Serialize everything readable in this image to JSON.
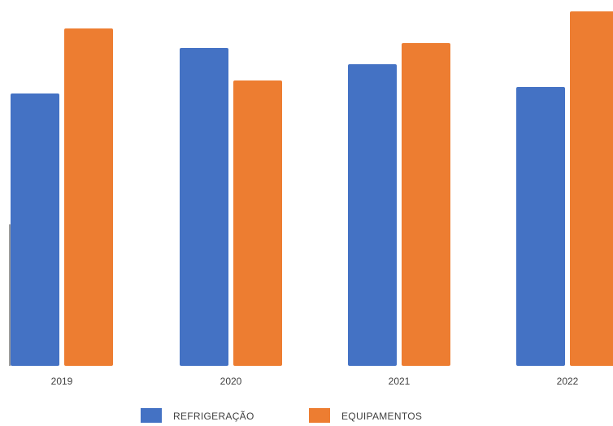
{
  "chart_data": {
    "type": "bar",
    "categories": [
      "2019",
      "2020",
      "2021",
      "2022"
    ],
    "series": [
      {
        "name": "REFRIGERAÇÃO",
        "color": "#4472C4",
        "values": [
          33.5,
          39.1,
          37.1,
          34.3
        ]
      },
      {
        "name": "EQUIPAMENTOS",
        "color": "#ED7D31",
        "values": [
          41.5,
          35.1,
          39.7,
          43.6
        ]
      }
    ],
    "ylim": [
      0,
      45
    ],
    "grid": false,
    "legend": "bottom-center"
  }
}
